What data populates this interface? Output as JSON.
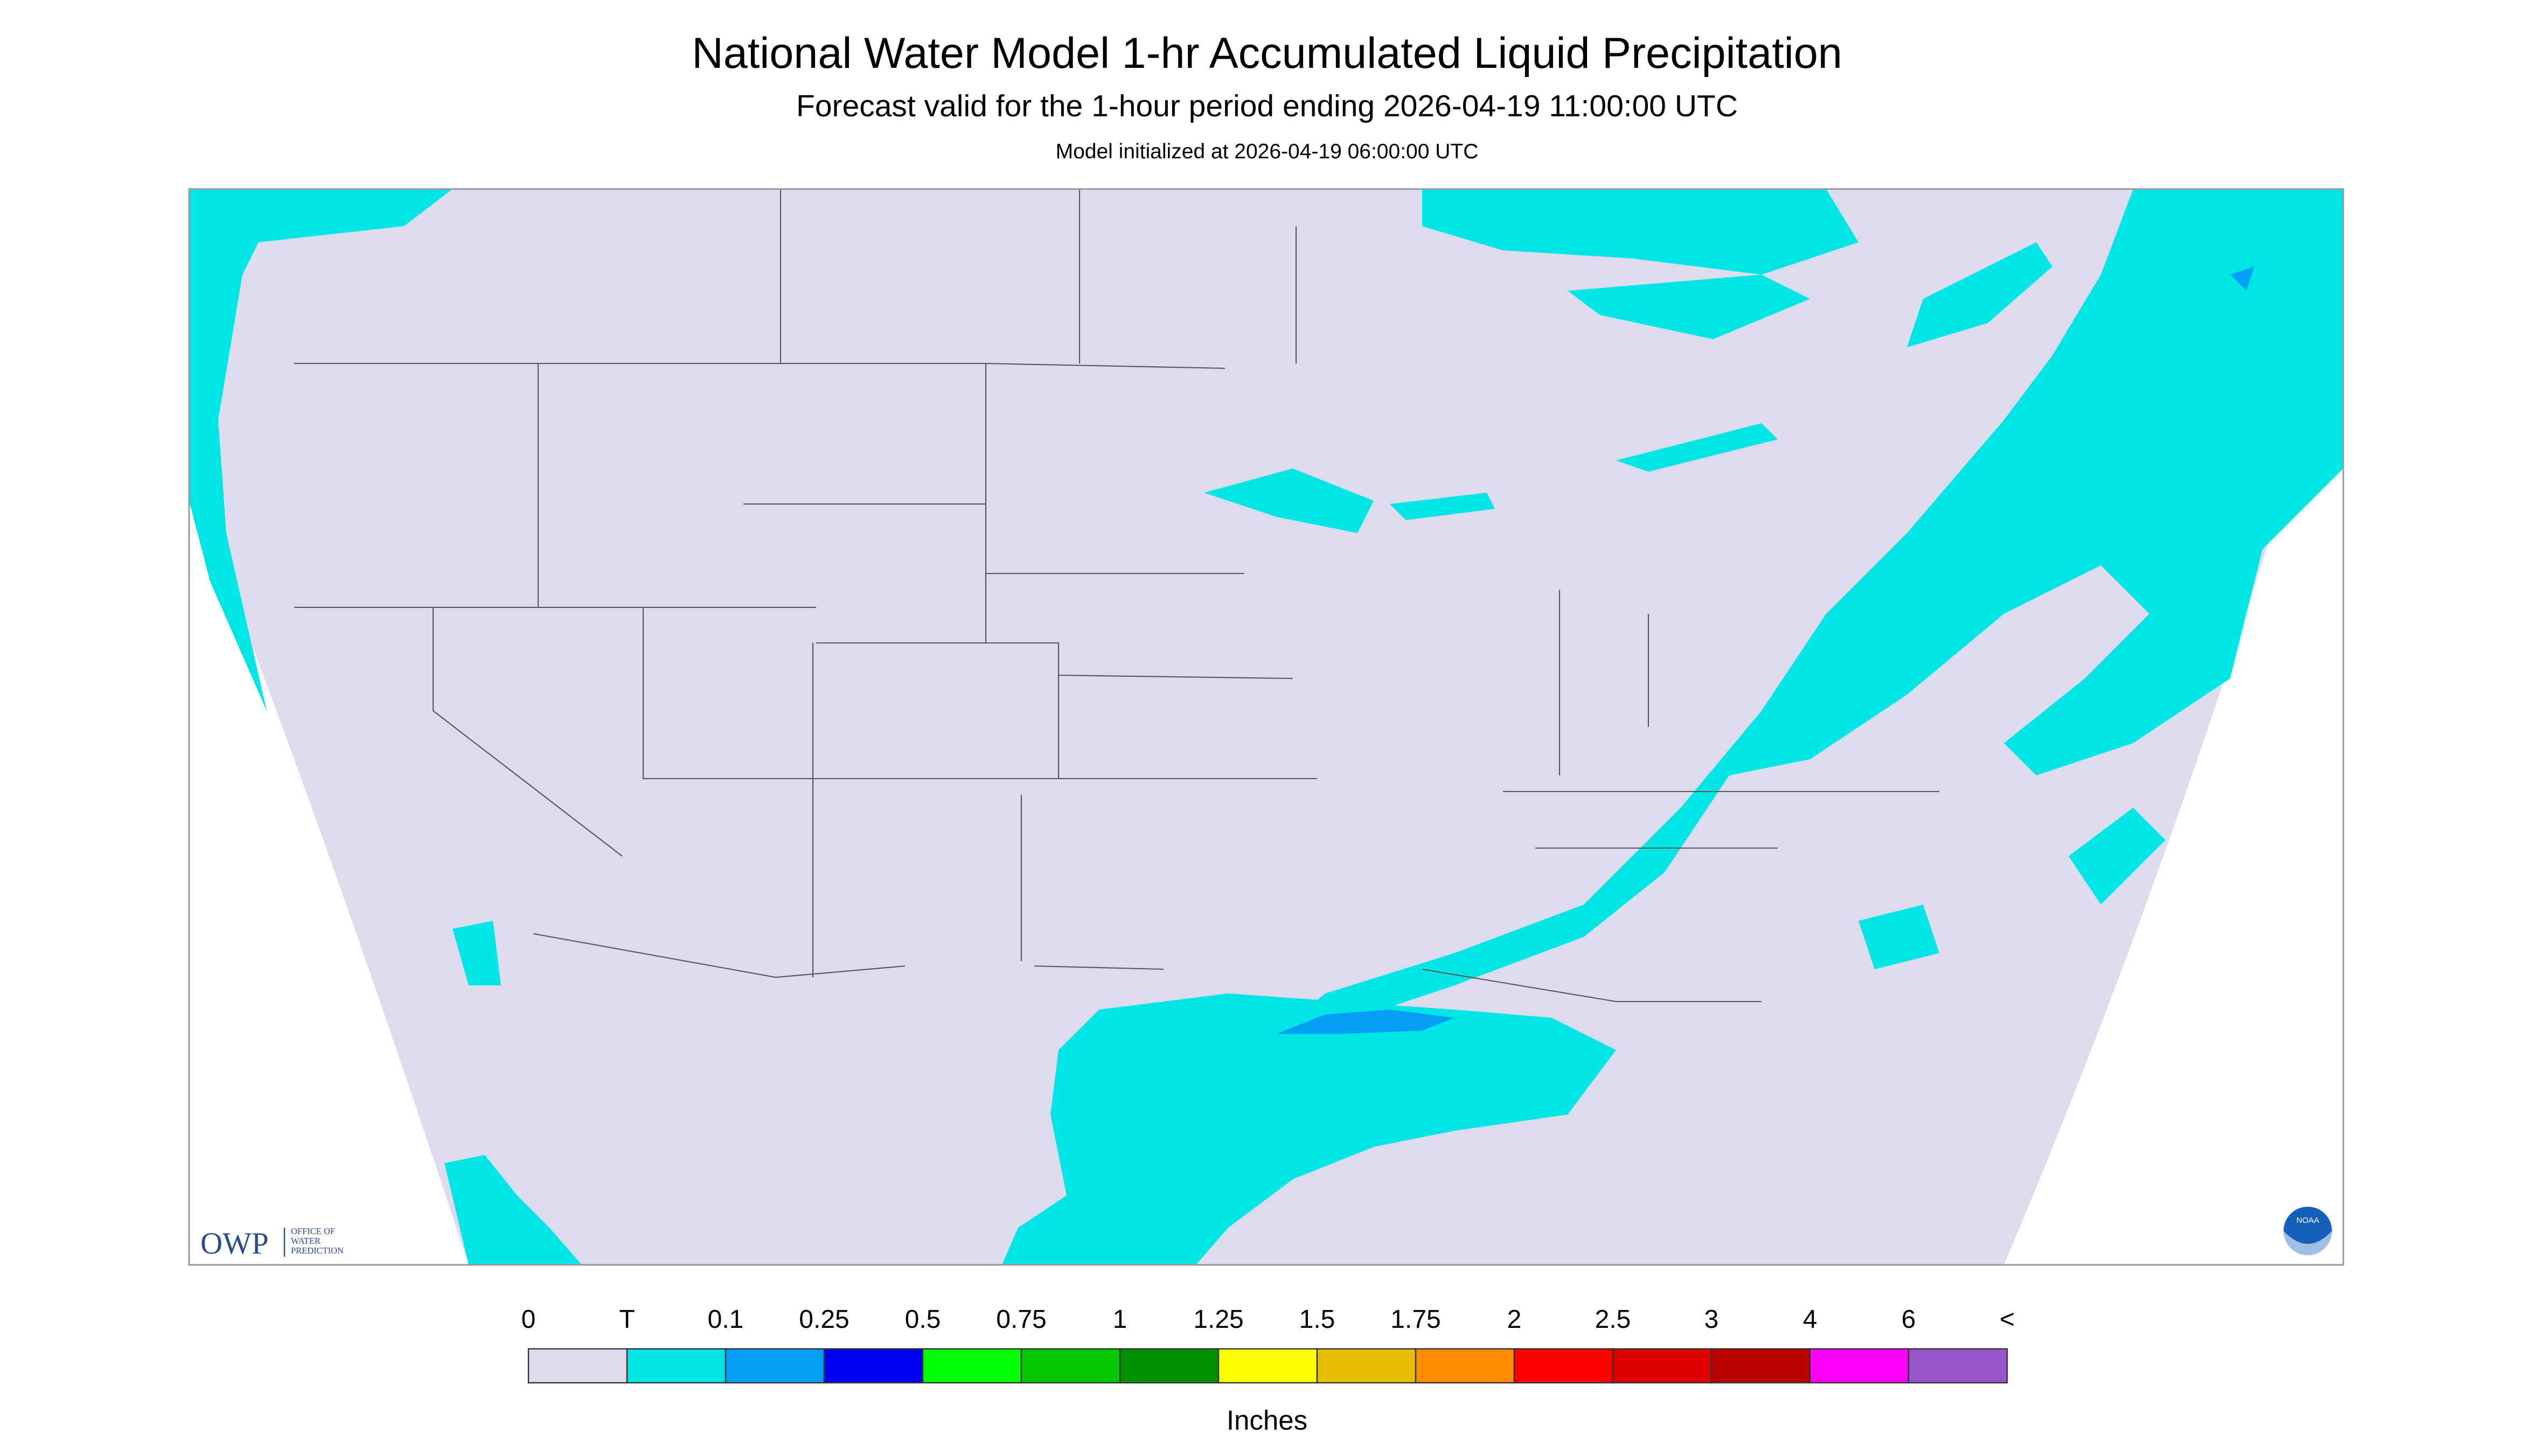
{
  "header": {
    "title": "National Water Model 1-hr Accumulated Liquid Precipitation",
    "subtitle": "Forecast valid for the 1-hour period ending 2026-04-19 11:00:00 UTC",
    "initialized": "Model initialized at 2026-04-19 06:00:00 UTC"
  },
  "legend": {
    "labels": [
      "0",
      "T",
      "0.1",
      "0.25",
      "0.5",
      "0.75",
      "1",
      "1.25",
      "1.5",
      "1.75",
      "2",
      "2.5",
      "3",
      "4",
      "6",
      "<"
    ],
    "colors": [
      "#dcdcee",
      "#00e6e6",
      "#009ff5",
      "#0000f5",
      "#00ff00",
      "#00c800",
      "#009100",
      "#ffff00",
      "#e6c000",
      "#ff8c00",
      "#ff0000",
      "#dc0000",
      "#bb0000",
      "#ff00ff",
      "#9955c9"
    ],
    "unit": "Inches"
  },
  "logos": {
    "owp": "OWP",
    "owp_name": [
      "OFFICE OF",
      "WATER",
      "PREDICTION"
    ],
    "noaa": "NOAA"
  }
}
